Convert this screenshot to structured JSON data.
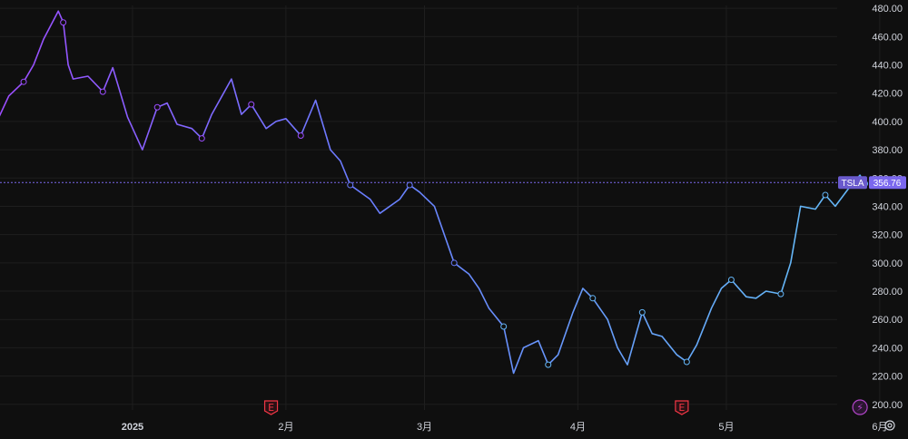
{
  "chart_data": {
    "type": "line",
    "ticker": "TSLA",
    "last_price": "356.76",
    "y_ticks": [
      "200.00",
      "220.00",
      "240.00",
      "260.00",
      "280.00",
      "300.00",
      "320.00",
      "340.00",
      "360.00",
      "380.00",
      "400.00",
      "420.00",
      "440.00",
      "460.00",
      "480.00"
    ],
    "ylim": [
      196,
      482
    ],
    "x_tick_labels": [
      {
        "label": "2025",
        "date": "2025-01-01",
        "bold": true
      },
      {
        "label": "2月",
        "date": "2025-02-01",
        "bold": false
      },
      {
        "label": "3月",
        "date": "2025-03-01",
        "bold": false
      },
      {
        "label": "4月",
        "date": "2025-04-01",
        "bold": false
      },
      {
        "label": "5月",
        "date": "2025-05-01",
        "bold": false
      },
      {
        "label": "6月",
        "date": "2025-06-01",
        "bold": false
      }
    ],
    "x": [
      "2024-12-05",
      "2024-12-07",
      "2024-12-10",
      "2024-12-12",
      "2024-12-14",
      "2024-12-17",
      "2024-12-18",
      "2024-12-19",
      "2024-12-20",
      "2024-12-23",
      "2024-12-26",
      "2024-12-28",
      "2024-12-31",
      "2025-01-03",
      "2025-01-06",
      "2025-01-08",
      "2025-01-10",
      "2025-01-13",
      "2025-01-15",
      "2025-01-17",
      "2025-01-21",
      "2025-01-23",
      "2025-01-25",
      "2025-01-28",
      "2025-01-30",
      "2025-02-01",
      "2025-02-04",
      "2025-02-07",
      "2025-02-10",
      "2025-02-12",
      "2025-02-14",
      "2025-02-18",
      "2025-02-20",
      "2025-02-24",
      "2025-02-26",
      "2025-02-28",
      "2025-03-03",
      "2025-03-05",
      "2025-03-07",
      "2025-03-10",
      "2025-03-12",
      "2025-03-14",
      "2025-03-17",
      "2025-03-19",
      "2025-03-21",
      "2025-03-24",
      "2025-03-26",
      "2025-03-28",
      "2025-03-31",
      "2025-04-02",
      "2025-04-04",
      "2025-04-07",
      "2025-04-09",
      "2025-04-11",
      "2025-04-14",
      "2025-04-16",
      "2025-04-18",
      "2025-04-21",
      "2025-04-23",
      "2025-04-25",
      "2025-04-28",
      "2025-04-30",
      "2025-05-02",
      "2025-05-05",
      "2025-05-07",
      "2025-05-09",
      "2025-05-12",
      "2025-05-14",
      "2025-05-16",
      "2025-05-19",
      "2025-05-21",
      "2025-05-23",
      "2025-05-26",
      "2025-05-28",
      "2025-05-29"
    ],
    "y": [
      403,
      418,
      428,
      440,
      458,
      478,
      470,
      440,
      430,
      432,
      421,
      438,
      403,
      380,
      410,
      413,
      398,
      395,
      388,
      405,
      430,
      405,
      412,
      395,
      400,
      402,
      390,
      415,
      380,
      372,
      355,
      345,
      335,
      345,
      355,
      350,
      340,
      320,
      300,
      292,
      282,
      268,
      255,
      222,
      240,
      245,
      228,
      235,
      265,
      282,
      275,
      260,
      240,
      228,
      265,
      250,
      248,
      235,
      230,
      242,
      268,
      282,
      288,
      276,
      275,
      280,
      278,
      300,
      340,
      338,
      348,
      340,
      354,
      362,
      356
    ],
    "series_colors": [
      "#9c4dff",
      "#6a7cff",
      "#64b5f6"
    ],
    "price_line_color": "#7b68ee",
    "event_markers": [
      {
        "date": "2025-01-29",
        "label": "E",
        "color": "#f23645"
      },
      {
        "date": "2025-04-22",
        "label": "E",
        "color": "#f23645"
      },
      {
        "date": "2025-05-28",
        "label": "⚡",
        "color": "#b245c9"
      }
    ],
    "grid": true
  }
}
